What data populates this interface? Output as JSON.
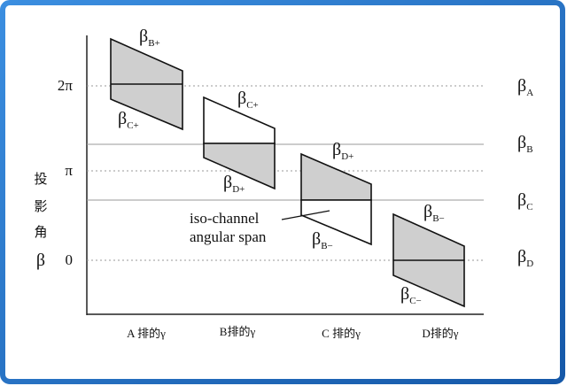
{
  "y_axis": {
    "label_chars": [
      "投",
      "影",
      "角",
      "β"
    ],
    "ticks": [
      "2π",
      "π",
      "0"
    ]
  },
  "x_axis": {
    "labels": [
      "A 排的γ",
      "B排的γ",
      "C 排的γ",
      "D排的γ"
    ]
  },
  "levels": [
    {
      "symbol": "β",
      "sub": "A"
    },
    {
      "symbol": "β",
      "sub": "B"
    },
    {
      "symbol": "β",
      "sub": "C"
    },
    {
      "symbol": "β",
      "sub": "D"
    }
  ],
  "blocks": [
    {
      "top": {
        "symbol": "β",
        "sub": "B+"
      },
      "bottom": {
        "symbol": "β",
        "sub": "C+"
      }
    },
    {
      "top": {
        "symbol": "β",
        "sub": "C+"
      },
      "bottom": {
        "symbol": "β",
        "sub": "D+"
      }
    },
    {
      "top": {
        "symbol": "β",
        "sub": "D+"
      },
      "bottom": {
        "symbol": "β",
        "sub": "B−"
      }
    },
    {
      "top": {
        "symbol": "β",
        "sub": "B−"
      },
      "bottom": {
        "symbol": "β",
        "sub": "C−"
      }
    }
  ],
  "annotation": {
    "lines": [
      "iso-channel",
      "angular span"
    ]
  }
}
